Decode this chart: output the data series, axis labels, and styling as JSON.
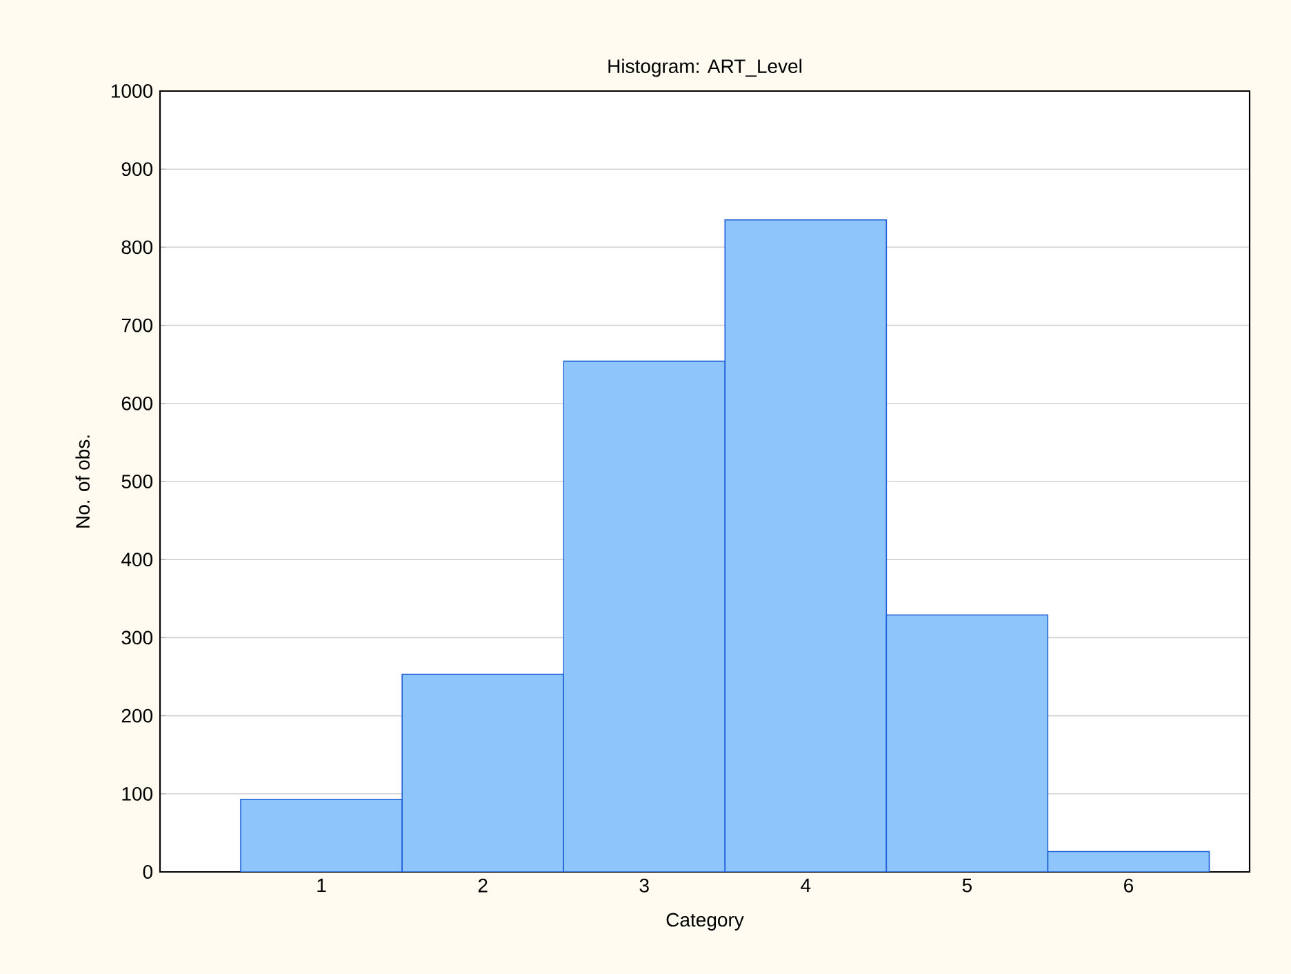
{
  "chart_data": {
    "type": "histogram",
    "title": "Histogram: ART_Level",
    "xlabel": "Category",
    "ylabel": "No. of obs.",
    "bins": [
      0.5,
      1.5,
      2.5,
      3.5,
      4.5,
      5.5,
      6.5
    ],
    "values": [
      93,
      253,
      654,
      835,
      329,
      26
    ],
    "color": "#8ec5fb",
    "xlim": [
      0,
      6.75
    ],
    "xticks": [
      1,
      2,
      3,
      4,
      5,
      6
    ],
    "ylim": [
      0,
      1000
    ],
    "yticks": [
      0,
      100,
      200,
      300,
      400,
      500,
      600,
      700,
      800,
      900,
      1000
    ],
    "grid": "y"
  }
}
